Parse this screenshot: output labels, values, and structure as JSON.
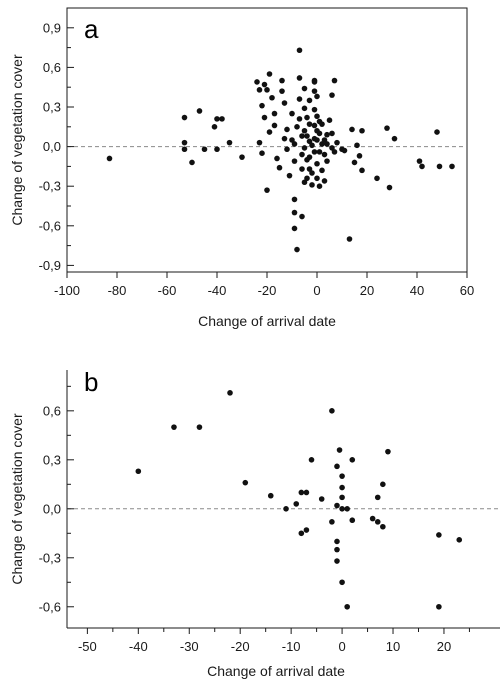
{
  "chart_data": [
    {
      "type": "scatter",
      "panel_label": "a",
      "xlabel": "Change of arrival date",
      "ylabel": "Change of vegetation cover",
      "xlim": [
        -100,
        60
      ],
      "ylim": [
        -0.95,
        1.05
      ],
      "x_ticks": [
        -100,
        -80,
        -60,
        -40,
        -20,
        0,
        20,
        40,
        60
      ],
      "x_tick_labels": [
        "-100",
        "-80",
        "-60",
        "-40",
        "-20",
        "0",
        "20",
        "40",
        "60"
      ],
      "y_ticks": [
        -0.9,
        -0.6,
        -0.3,
        0.0,
        0.3,
        0.6,
        0.9
      ],
      "y_tick_labels": [
        "-0,9",
        "-0,6",
        "-0,3",
        "0,0",
        "0,3",
        "0,6",
        "0,9"
      ],
      "y_minor_ticks": [
        -0.75,
        -0.45,
        -0.15,
        0.15,
        0.45,
        0.75
      ],
      "reference_line_y": 0,
      "grid": false,
      "points": [
        [
          -83,
          -0.09
        ],
        [
          -53,
          0.22
        ],
        [
          -53,
          0.03
        ],
        [
          -53,
          -0.02
        ],
        [
          -50,
          -0.12
        ],
        [
          -47,
          0.27
        ],
        [
          -45,
          -0.02
        ],
        [
          -41,
          0.15
        ],
        [
          -40,
          0.21
        ],
        [
          -38,
          0.21
        ],
        [
          -40,
          -0.02
        ],
        [
          -35,
          0.03
        ],
        [
          -30,
          -0.08
        ],
        [
          -24,
          0.49
        ],
        [
          -23,
          0.43
        ],
        [
          -21,
          0.47
        ],
        [
          -20,
          0.43
        ],
        [
          -22,
          0.31
        ],
        [
          -21,
          0.22
        ],
        [
          -19,
          0.11
        ],
        [
          -23,
          0.03
        ],
        [
          -22,
          -0.05
        ],
        [
          -20,
          -0.33
        ],
        [
          -19,
          0.55
        ],
        [
          -18,
          0.37
        ],
        [
          -17,
          0.25
        ],
        [
          -17,
          0.16
        ],
        [
          -16,
          -0.09
        ],
        [
          -15,
          -0.16
        ],
        [
          -14,
          0.5
        ],
        [
          -14,
          0.42
        ],
        [
          -13,
          0.33
        ],
        [
          -12,
          0.13
        ],
        [
          -12,
          -0.02
        ],
        [
          -11,
          -0.22
        ],
        [
          -10,
          0.25
        ],
        [
          -10,
          0.05
        ],
        [
          -9,
          -0.11
        ],
        [
          -9,
          -0.4
        ],
        [
          -9,
          -0.5
        ],
        [
          -9,
          -0.62
        ],
        [
          -8,
          0.15
        ],
        [
          -8,
          -0.78
        ],
        [
          -7,
          0.73
        ],
        [
          -7,
          0.52
        ],
        [
          -7,
          0.36
        ],
        [
          -7,
          0.21
        ],
        [
          -6,
          0.08
        ],
        [
          -6,
          -0.06
        ],
        [
          -6,
          -0.17
        ],
        [
          -6,
          -0.53
        ],
        [
          -5,
          0.44
        ],
        [
          -5,
          0.29
        ],
        [
          -5,
          0.12
        ],
        [
          -5,
          -0.01
        ],
        [
          -5,
          -0.27
        ],
        [
          -4,
          0.22
        ],
        [
          -4,
          0.08
        ],
        [
          -4,
          -0.1
        ],
        [
          -4,
          -0.24
        ],
        [
          -3,
          0.35
        ],
        [
          -3,
          0.17
        ],
        [
          -3,
          0.04
        ],
        [
          -3,
          -0.08
        ],
        [
          -3,
          -0.17
        ],
        [
          -2,
          0.01
        ],
        [
          -2,
          -0.2
        ],
        [
          -2,
          -0.29
        ],
        [
          -1,
          0.5
        ],
        [
          -1,
          0.49
        ],
        [
          -1,
          0.42
        ],
        [
          -1,
          0.28
        ],
        [
          -1,
          0.16
        ],
        [
          -1,
          0.06
        ],
        [
          -1,
          -0.04
        ],
        [
          0,
          0.38
        ],
        [
          0,
          0.23
        ],
        [
          0,
          0.12
        ],
        [
          0,
          0.05
        ],
        [
          0,
          -0.13
        ],
        [
          0,
          -0.24
        ],
        [
          1,
          0.19
        ],
        [
          1,
          0.1
        ],
        [
          1,
          -0.04
        ],
        [
          1,
          -0.3
        ],
        [
          2,
          0.17
        ],
        [
          2,
          0.02
        ],
        [
          2,
          -0.18
        ],
        [
          3,
          0.05
        ],
        [
          3,
          -0.06
        ],
        [
          3,
          -0.26
        ],
        [
          4,
          0.09
        ],
        [
          4,
          0.02
        ],
        [
          4,
          -0.11
        ],
        [
          5,
          0.2
        ],
        [
          6,
          0.39
        ],
        [
          6,
          0.1
        ],
        [
          6,
          -0.01
        ],
        [
          7,
          0.5
        ],
        [
          7,
          -0.04
        ],
        [
          8,
          0.03
        ],
        [
          10,
          -0.02
        ],
        [
          11,
          -0.03
        ],
        [
          13,
          -0.7
        ],
        [
          14,
          0.13
        ],
        [
          15,
          -0.12
        ],
        [
          17,
          -0.07
        ],
        [
          18,
          0.12
        ],
        [
          18,
          -0.18
        ],
        [
          24,
          -0.24
        ],
        [
          28,
          0.14
        ],
        [
          29,
          -0.31
        ],
        [
          31,
          0.06
        ],
        [
          41,
          -0.11
        ],
        [
          42,
          -0.15
        ],
        [
          48,
          0.11
        ],
        [
          49,
          -0.15
        ],
        [
          54,
          -0.15
        ],
        [
          16,
          0.01
        ],
        [
          -9,
          0.02
        ],
        [
          -13,
          0.06
        ]
      ]
    },
    {
      "type": "scatter",
      "panel_label": "b",
      "xlabel": "Change of arrival date",
      "ylabel": "Change of vegetation cover",
      "xlim": [
        -54,
        31
      ],
      "ylim": [
        -0.73,
        0.85
      ],
      "x_ticks": [
        -50,
        -40,
        -30,
        -20,
        -10,
        0,
        10,
        20
      ],
      "x_tick_labels": [
        "-50",
        "-40",
        "-30",
        "-20",
        "-10",
        "0",
        "10",
        "20"
      ],
      "x_minor_ticks": [
        -45,
        -35,
        -25,
        -15,
        -5,
        5,
        15,
        25
      ],
      "y_ticks": [
        -0.6,
        -0.3,
        0.0,
        0.3,
        0.6
      ],
      "y_tick_labels": [
        "-0,6",
        "-0,3",
        "0,0",
        "0,3",
        "0,6"
      ],
      "y_minor_ticks": [
        -0.45,
        -0.15,
        0.15,
        0.45,
        0.75
      ],
      "reference_line_y": 0,
      "grid": false,
      "points": [
        [
          -40,
          0.23
        ],
        [
          -33,
          0.5
        ],
        [
          -28,
          0.5
        ],
        [
          -22,
          0.71
        ],
        [
          -19,
          0.16
        ],
        [
          -14,
          0.08
        ],
        [
          -11,
          0.0
        ],
        [
          -9,
          0.03
        ],
        [
          -8,
          0.1
        ],
        [
          -8,
          -0.15
        ],
        [
          -7,
          0.1
        ],
        [
          -7,
          -0.13
        ],
        [
          -6,
          0.3
        ],
        [
          -4,
          0.06
        ],
        [
          -2,
          0.6
        ],
        [
          -2,
          -0.08
        ],
        [
          -1,
          0.26
        ],
        [
          -1,
          0.02
        ],
        [
          -1,
          -0.2
        ],
        [
          -1,
          -0.25
        ],
        [
          -1,
          -0.32
        ],
        [
          -0.5,
          0.36
        ],
        [
          0,
          0.2
        ],
        [
          0,
          0.13
        ],
        [
          0,
          0.07
        ],
        [
          0,
          0.0
        ],
        [
          0,
          -0.45
        ],
        [
          1,
          0.0
        ],
        [
          1,
          -0.6
        ],
        [
          2,
          -0.07
        ],
        [
          2,
          0.3
        ],
        [
          6,
          -0.06
        ],
        [
          7,
          -0.08
        ],
        [
          7,
          0.07
        ],
        [
          8,
          0.15
        ],
        [
          8,
          -0.11
        ],
        [
          9,
          0.35
        ],
        [
          19,
          -0.6
        ],
        [
          19,
          -0.16
        ],
        [
          23,
          -0.19
        ]
      ]
    }
  ]
}
